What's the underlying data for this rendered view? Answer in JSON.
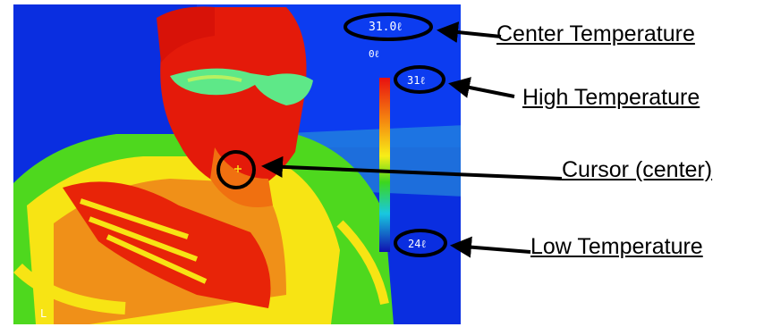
{
  "screen": {
    "center_temp": "31.0ℓ",
    "emissivity": "0ℓ",
    "high_temp": "31ℓ",
    "low_temp": "24ℓ",
    "mode": "L"
  },
  "callouts": {
    "center": "Center Temperature",
    "high": "High Temperature",
    "cursor": "Cursor (center)",
    "low": "Low Temperature"
  },
  "colors": {
    "background": "#0a2ee0",
    "hot": "#e81e08",
    "warm": "#f7e414",
    "mid": "#3cd61e",
    "cool": "#18c8d8",
    "annotation": "#000000"
  },
  "icons": [
    "crosshair-icon",
    "arrow-icon"
  ]
}
